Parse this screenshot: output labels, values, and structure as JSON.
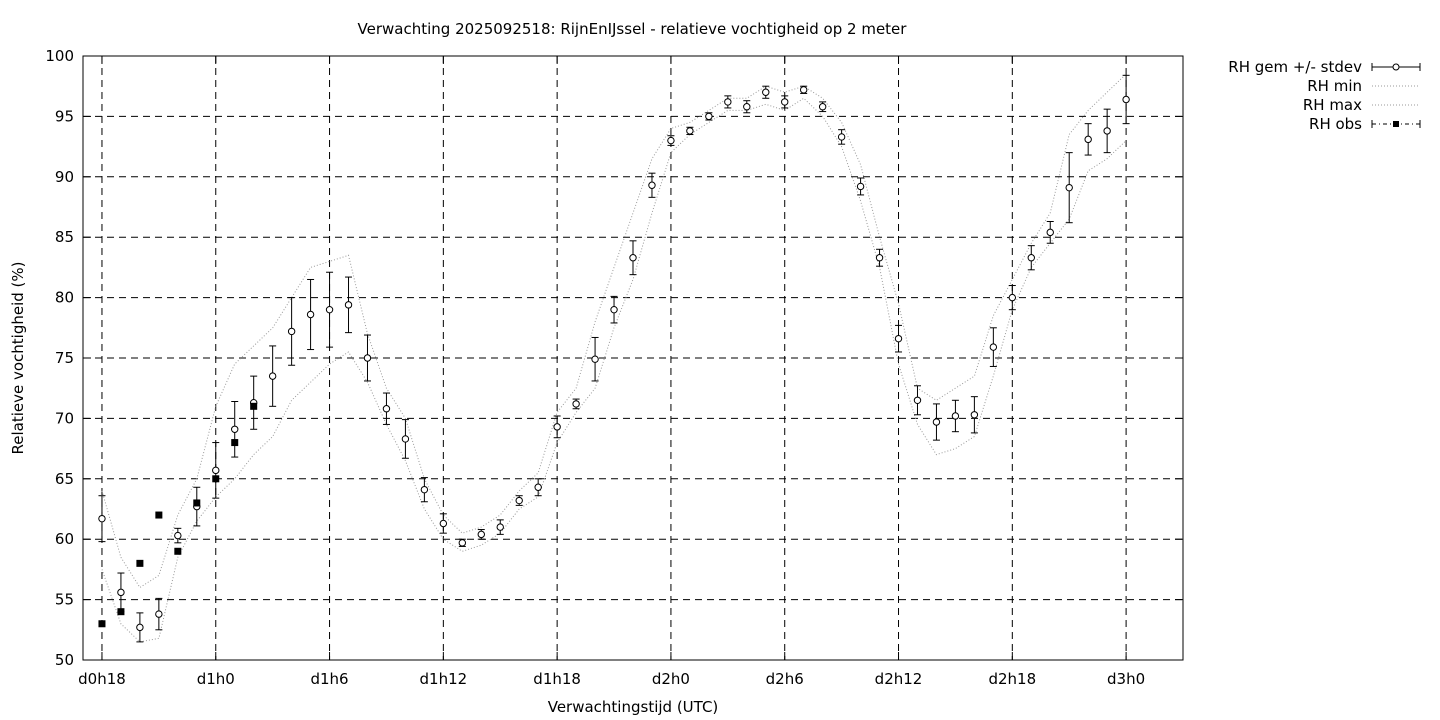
{
  "chart_data": {
    "type": "line",
    "title": "Verwachting 2025092518: RijnEnIJssel - relatieve vochtigheid op 2 meter",
    "xlabel": "Verwachtingstijd (UTC)",
    "ylabel": "Relatieve vochtigheid (%)",
    "xlim": [
      -1,
      57
    ],
    "ylim": [
      50,
      100
    ],
    "grid": true,
    "legend_position": "outside-top-right",
    "x_ticks": [
      {
        "x": 0,
        "label": "d0h18"
      },
      {
        "x": 6,
        "label": "d1h0"
      },
      {
        "x": 12,
        "label": "d1h6"
      },
      {
        "x": 18,
        "label": "d1h12"
      },
      {
        "x": 24,
        "label": "d1h18"
      },
      {
        "x": 30,
        "label": "d2h0"
      },
      {
        "x": 36,
        "label": "d2h6"
      },
      {
        "x": 42,
        "label": "d2h12"
      },
      {
        "x": 48,
        "label": "d2h18"
      },
      {
        "x": 54,
        "label": "d3h0"
      }
    ],
    "y_ticks": [
      50,
      55,
      60,
      65,
      70,
      75,
      80,
      85,
      90,
      95,
      100
    ],
    "legend": [
      {
        "label": "RH gem +/- stdev",
        "style": "errorbar"
      },
      {
        "label": "RH min",
        "style": "dotted"
      },
      {
        "label": "RH max",
        "style": "dotted"
      },
      {
        "label": "RH obs",
        "style": "filled-square"
      }
    ],
    "series": [
      {
        "name": "RH gem +/- stdev",
        "x": [
          0,
          1,
          2,
          3,
          4,
          5,
          6,
          7,
          8,
          9,
          10,
          11,
          12,
          13,
          14,
          15,
          16,
          17,
          18,
          19,
          20,
          21,
          22,
          23,
          24,
          25,
          26,
          27,
          28,
          29,
          30,
          31,
          32,
          33,
          34,
          35,
          36,
          37,
          38,
          39,
          40,
          41,
          42,
          43,
          44,
          45,
          46,
          47,
          48,
          49,
          50,
          51,
          52,
          53,
          54
        ],
        "mean": [
          61.7,
          55.6,
          52.7,
          53.8,
          60.3,
          62.7,
          65.7,
          69.1,
          71.3,
          73.5,
          77.2,
          78.6,
          79.0,
          79.4,
          75.0,
          70.8,
          68.3,
          64.1,
          61.3,
          59.7,
          60.4,
          61.0,
          63.2,
          64.3,
          69.3,
          71.2,
          74.9,
          79.0,
          83.3,
          89.3,
          93.0,
          93.8,
          95.0,
          96.2,
          95.8,
          97.0,
          96.2,
          97.2,
          95.8,
          93.3,
          89.2,
          83.3,
          76.6,
          71.5,
          69.7,
          70.2,
          70.3,
          75.9,
          80.0,
          83.3,
          85.4,
          89.1,
          93.1,
          93.8,
          96.4
        ],
        "stdev": [
          1.9,
          1.6,
          1.2,
          1.3,
          0.6,
          1.6,
          2.3,
          2.3,
          2.2,
          2.5,
          2.8,
          2.9,
          3.1,
          2.3,
          1.9,
          1.3,
          1.6,
          1.0,
          0.8,
          0.3,
          0.4,
          0.6,
          0.4,
          0.7,
          0.9,
          0.4,
          1.8,
          1.1,
          1.4,
          1.0,
          0.4,
          0.3,
          0.3,
          0.5,
          0.5,
          0.5,
          0.5,
          0.3,
          0.4,
          0.6,
          0.7,
          0.7,
          1.1,
          1.2,
          1.5,
          1.3,
          1.5,
          1.6,
          1.0,
          1.0,
          0.9,
          2.9,
          1.3,
          1.8,
          2.0
        ]
      },
      {
        "name": "RH min",
        "x": [
          0,
          1,
          2,
          3,
          4,
          5,
          6,
          7,
          8,
          9,
          10,
          11,
          12,
          13,
          14,
          15,
          16,
          17,
          18,
          19,
          20,
          21,
          22,
          23,
          24,
          25,
          26,
          27,
          28,
          29,
          30,
          31,
          32,
          33,
          34,
          35,
          36,
          37,
          38,
          39,
          40,
          41,
          42,
          43,
          44,
          45,
          46,
          47,
          48,
          49,
          50,
          51,
          52,
          53,
          54
        ],
        "values": [
          57.5,
          53.0,
          51.5,
          51.8,
          58.5,
          61.5,
          63.5,
          65.0,
          67.0,
          68.5,
          71.5,
          73.0,
          74.5,
          75.5,
          73.0,
          69.5,
          66.5,
          62.5,
          60.0,
          59.0,
          59.5,
          60.5,
          62.5,
          63.5,
          68.0,
          70.5,
          72.5,
          77.5,
          81.5,
          87.0,
          92.0,
          93.5,
          94.5,
          95.5,
          95.5,
          96.0,
          95.5,
          96.5,
          95.0,
          92.5,
          88.0,
          82.5,
          74.5,
          69.5,
          67.0,
          67.5,
          68.5,
          73.5,
          79.0,
          82.5,
          84.5,
          86.5,
          90.5,
          91.5,
          93.0
        ]
      },
      {
        "name": "RH max",
        "x": [
          0,
          1,
          2,
          3,
          4,
          5,
          6,
          7,
          8,
          9,
          10,
          11,
          12,
          13,
          14,
          15,
          16,
          17,
          18,
          19,
          20,
          21,
          22,
          23,
          24,
          25,
          26,
          27,
          28,
          29,
          30,
          31,
          32,
          33,
          34,
          35,
          36,
          37,
          38,
          39,
          40,
          41,
          42,
          43,
          44,
          45,
          46,
          47,
          48,
          49,
          50,
          51,
          52,
          53,
          54
        ],
        "values": [
          64.0,
          58.5,
          56.0,
          57.0,
          62.0,
          65.0,
          71.0,
          74.5,
          76.0,
          77.5,
          80.0,
          82.5,
          83.0,
          83.5,
          77.0,
          72.5,
          70.0,
          65.0,
          62.0,
          60.5,
          61.0,
          62.0,
          64.0,
          65.5,
          70.5,
          72.5,
          78.0,
          82.5,
          87.0,
          91.5,
          94.0,
          94.5,
          95.5,
          96.5,
          96.5,
          97.5,
          97.0,
          97.5,
          96.5,
          94.5,
          91.0,
          85.0,
          79.5,
          72.5,
          71.5,
          72.5,
          73.5,
          78.5,
          81.5,
          84.5,
          87.0,
          93.5,
          95.5,
          97.0,
          98.5
        ]
      },
      {
        "name": "RH obs",
        "x": [
          0,
          1,
          2,
          3,
          4,
          5,
          6,
          7,
          8
        ],
        "values": [
          53,
          54,
          58,
          62,
          59,
          63,
          65,
          68,
          71
        ]
      }
    ]
  }
}
